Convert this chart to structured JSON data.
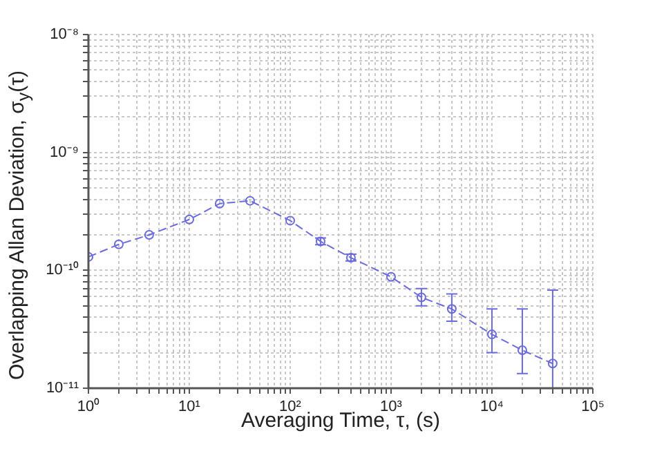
{
  "chart_data": {
    "type": "line",
    "xlabel": "Averaging Time, τ, (s)",
    "ylabel": "Overlapping Allan Deviation, σ$_{y}$(τ)",
    "x": [
      1,
      2,
      4,
      10,
      20,
      40,
      100,
      200,
      400,
      1000,
      2000,
      4000,
      10000,
      20000,
      40000
    ],
    "series": [
      {
        "color": "#6b6be0",
        "values": [
          1.3e-10,
          1.66e-10,
          2e-10,
          2.7e-10,
          3.68e-10,
          3.89e-10,
          2.64e-10,
          1.76e-10,
          1.28e-10,
          8.8e-11,
          5.9e-11,
          4.7e-11,
          2.86e-11,
          2.1e-11,
          1.62e-11
        ],
        "errors": [
          null,
          null,
          null,
          null,
          null,
          null,
          null,
          [
            1.65e-10,
            1.88e-10
          ],
          [
            1.2e-10,
            1.37e-10
          ],
          null,
          [
            5e-11,
            7e-11
          ],
          [
            3.7e-11,
            6.3e-11
          ],
          [
            2e-11,
            4.7e-11
          ],
          [
            1.33e-11,
            4.7e-11
          ],
          [
            1e-11,
            6.8e-11
          ]
        ]
      }
    ],
    "log": "xy",
    "grid": true,
    "marker": "circle",
    "line_style": "dashed",
    "legend": false,
    "xlim": [
      1,
      100000
    ],
    "ylim": [
      1e-11,
      1e-08
    ],
    "xticks": [
      {
        "value": 1,
        "label": "10⁰"
      },
      {
        "value": 2,
        "label": null
      },
      {
        "value": 3,
        "label": null
      },
      {
        "value": 4,
        "label": null
      },
      {
        "value": 5,
        "label": null
      },
      {
        "value": 6,
        "label": null
      },
      {
        "value": 7,
        "label": null
      },
      {
        "value": 8,
        "label": null
      },
      {
        "value": 9,
        "label": null
      },
      {
        "value": 10,
        "label": "10¹"
      },
      {
        "value": 20,
        "label": null
      },
      {
        "value": 30,
        "label": null
      },
      {
        "value": 40,
        "label": null
      },
      {
        "value": 50,
        "label": null
      },
      {
        "value": 60,
        "label": null
      },
      {
        "value": 70,
        "label": null
      },
      {
        "value": 80,
        "label": null
      },
      {
        "value": 90,
        "label": null
      },
      {
        "value": 100,
        "label": "10²"
      },
      {
        "value": 200,
        "label": null
      },
      {
        "value": 300,
        "label": null
      },
      {
        "value": 400,
        "label": null
      },
      {
        "value": 500,
        "label": null
      },
      {
        "value": 600,
        "label": null
      },
      {
        "value": 700,
        "label": null
      },
      {
        "value": 800,
        "label": null
      },
      {
        "value": 900,
        "label": null
      },
      {
        "value": 1000,
        "label": "10³"
      },
      {
        "value": 2000,
        "label": null
      },
      {
        "value": 3000,
        "label": null
      },
      {
        "value": 4000,
        "label": null
      },
      {
        "value": 5000,
        "label": null
      },
      {
        "value": 6000,
        "label": null
      },
      {
        "value": 7000,
        "label": null
      },
      {
        "value": 8000,
        "label": null
      },
      {
        "value": 9000,
        "label": null
      },
      {
        "value": 10000,
        "label": "10⁴"
      },
      {
        "value": 20000,
        "label": null
      },
      {
        "value": 30000,
        "label": null
      },
      {
        "value": 40000,
        "label": null
      },
      {
        "value": 50000,
        "label": null
      },
      {
        "value": 60000,
        "label": null
      },
      {
        "value": 70000,
        "label": null
      },
      {
        "value": 80000,
        "label": null
      },
      {
        "value": 90000,
        "label": null
      },
      {
        "value": 100000,
        "label": "10⁵"
      }
    ],
    "yticks": [
      {
        "value": 1e-11,
        "label": "10⁻¹¹"
      },
      {
        "value": 2e-11,
        "label": null
      },
      {
        "value": 3e-11,
        "label": null
      },
      {
        "value": 4e-11,
        "label": null
      },
      {
        "value": 5e-11,
        "label": null
      },
      {
        "value": 6e-11,
        "label": null
      },
      {
        "value": 7e-11,
        "label": null
      },
      {
        "value": 8e-11,
        "label": null
      },
      {
        "value": 9e-11,
        "label": null
      },
      {
        "value": 1e-10,
        "label": "10⁻¹⁰"
      },
      {
        "value": 2e-10,
        "label": null
      },
      {
        "value": 3e-10,
        "label": null
      },
      {
        "value": 4e-10,
        "label": null
      },
      {
        "value": 5e-10,
        "label": null
      },
      {
        "value": 6e-10,
        "label": null
      },
      {
        "value": 7e-10,
        "label": null
      },
      {
        "value": 8e-10,
        "label": null
      },
      {
        "value": 9e-10,
        "label": null
      },
      {
        "value": 1e-09,
        "label": "10⁻⁹"
      },
      {
        "value": 2e-09,
        "label": null
      },
      {
        "value": 3e-09,
        "label": null
      },
      {
        "value": 4e-09,
        "label": null
      },
      {
        "value": 5e-09,
        "label": null
      },
      {
        "value": 6e-09,
        "label": null
      },
      {
        "value": 7e-09,
        "label": null
      },
      {
        "value": 8e-09,
        "label": null
      },
      {
        "value": 9e-09,
        "label": null
      },
      {
        "value": 1e-08,
        "label": "10⁻⁸"
      }
    ]
  }
}
